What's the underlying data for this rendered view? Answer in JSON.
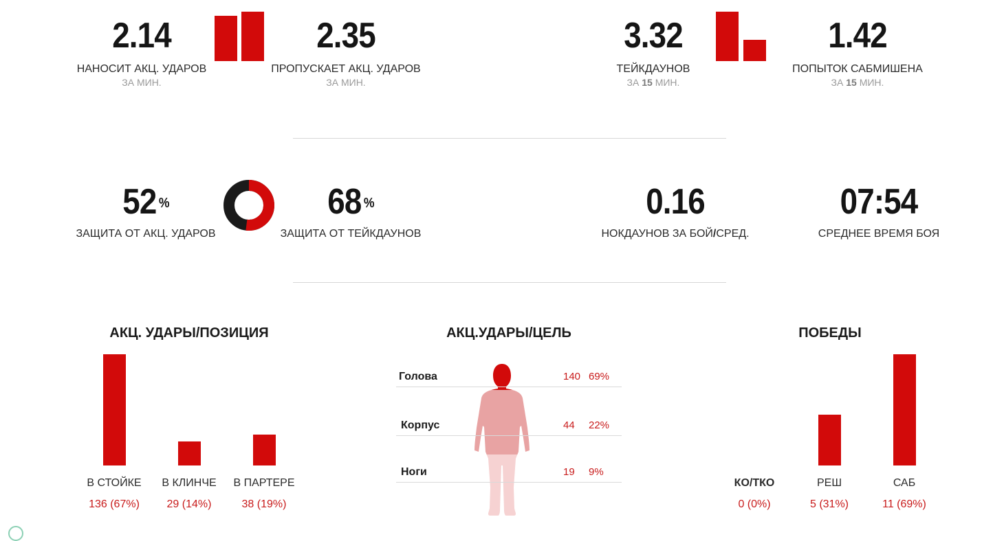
{
  "top_row": [
    {
      "value": "2.14",
      "label": "НАНОСИТ АКЦ. УДАРОВ",
      "sub": "ЗА МИН."
    },
    {
      "value": "2.35",
      "label": "ПРОПУСКАЕТ АКЦ. УДАРОВ",
      "sub": "ЗА МИН."
    },
    {
      "value": "3.32",
      "label": "ТЕЙКДАУНОВ",
      "sub_prefix": "ЗА",
      "sub_num": "15",
      "sub_suffix": "МИН."
    },
    {
      "value": "1.42",
      "label": "ПОПЫТОК САБМИШЕНА",
      "sub_prefix": "ЗА",
      "sub_num": "15",
      "sub_suffix": "МИН."
    }
  ],
  "mid_row": [
    {
      "value": "52",
      "unit": "%",
      "label": "ЗАЩИТА ОТ АКЦ. УДАРОВ"
    },
    {
      "value": "68",
      "unit": "%",
      "label": "ЗАЩИТА ОТ ТЕЙКДАУНОВ"
    },
    {
      "value": "0.16",
      "label_a": "НОКДАУНОВ ЗА БОЙ",
      "label_sep": "/",
      "label_b": "СРЕД."
    },
    {
      "value": "07:54",
      "label": "СРЕДНЕЕ ВРЕМЯ БОЯ"
    }
  ],
  "colors": {
    "accent": "#d20a0a",
    "dark": "#1a1a1a"
  },
  "chart_data": [
    {
      "type": "bar",
      "categories": [
        "НАНОСИТ АКЦ. УДАРОВ",
        "ПРОПУСКАЕТ АКЦ. УДАРОВ"
      ],
      "values": [
        2.14,
        2.35
      ]
    },
    {
      "type": "bar",
      "categories": [
        "ТЕЙКДАУНОВ",
        "ПОПЫТОК САБМИШЕНА"
      ],
      "values": [
        3.32,
        1.42
      ]
    },
    {
      "type": "pie",
      "categories": [
        "ЗАЩИТА ОТ АКЦ. УДАРОВ",
        "ЗАЩИТА ОТ ТЕЙКДАУНОВ"
      ],
      "values": [
        52,
        68
      ]
    },
    {
      "type": "bar",
      "title": "АКЦ. УДАРЫ/ПОЗИЦИЯ",
      "categories": [
        "В СТОЙКЕ",
        "В КЛИНЧЕ",
        "В ПАРТЕРЕ"
      ],
      "values": [
        136,
        29,
        38
      ],
      "labels": [
        "136 (67%)",
        "29 (14%)",
        "38 (19%)"
      ]
    },
    {
      "type": "table",
      "title": "АКЦ.УДАРЫ/ЦЕЛЬ",
      "rows": [
        {
          "target": "Голова",
          "count": "140",
          "percent": "69%",
          "share": 69
        },
        {
          "target": "Корпус",
          "count": "44",
          "percent": "22%",
          "share": 22
        },
        {
          "target": "Ноги",
          "count": "19",
          "percent": "9%",
          "share": 9
        }
      ]
    },
    {
      "type": "bar",
      "title": "ПОБЕДЫ",
      "categories": [
        "КО/ТКО",
        "РЕШ",
        "САБ"
      ],
      "values": [
        0,
        5,
        11
      ],
      "labels": [
        "0 (0%)",
        "5 (31%)",
        "11 (69%)"
      ]
    }
  ]
}
